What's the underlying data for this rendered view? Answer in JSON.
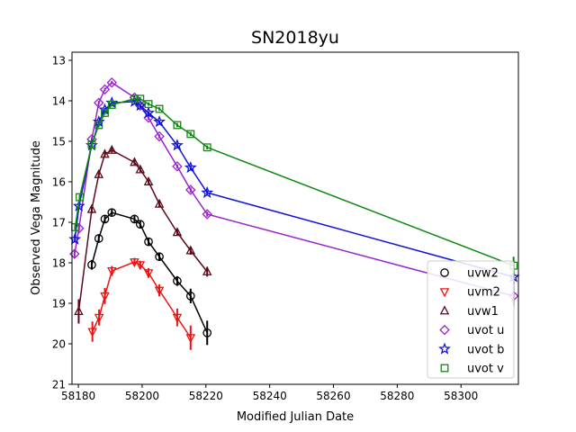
{
  "chart_data": {
    "type": "line",
    "title": "SN2018yu",
    "xlabel": "Modified Julian Date",
    "ylabel": "Observed Vega Magnitude",
    "xlim": [
      58178,
      58318
    ],
    "ylim": [
      21,
      12.8
    ],
    "y_inverted": true,
    "xticks": [
      58180,
      58200,
      58220,
      58240,
      58260,
      58280,
      58300
    ],
    "yticks": [
      13,
      14,
      15,
      16,
      17,
      18,
      19,
      20,
      21
    ],
    "grid": false,
    "legend_position": "lower-right",
    "series": [
      {
        "name": "uvw2",
        "color": "#000000",
        "marker": "circle",
        "points": [
          {
            "x": 58184.2,
            "y": 18.05,
            "err": 0.12
          },
          {
            "x": 58186.4,
            "y": 17.4,
            "err": 0.1
          },
          {
            "x": 58188.3,
            "y": 16.92,
            "err": 0.1
          },
          {
            "x": 58190.5,
            "y": 16.76,
            "err": 0.08
          },
          {
            "x": 58197.6,
            "y": 16.92,
            "err": 0.08
          },
          {
            "x": 58199.4,
            "y": 17.05,
            "err": 0.1
          },
          {
            "x": 58202.0,
            "y": 17.48,
            "err": 0.1
          },
          {
            "x": 58205.4,
            "y": 17.85,
            "err": 0.1
          },
          {
            "x": 58211.0,
            "y": 18.45,
            "err": 0.12
          },
          {
            "x": 58215.2,
            "y": 18.82,
            "err": 0.18
          },
          {
            "x": 58220.4,
            "y": 19.73,
            "err": 0.3
          }
        ]
      },
      {
        "name": "uvm2",
        "color": "#ee1111",
        "marker": "triangle-down",
        "points": [
          {
            "x": 58184.4,
            "y": 19.7,
            "err": 0.25
          },
          {
            "x": 58186.5,
            "y": 19.35,
            "err": 0.2
          },
          {
            "x": 58188.3,
            "y": 18.82,
            "err": 0.2
          },
          {
            "x": 58190.5,
            "y": 18.2,
            "err": 0.12
          },
          {
            "x": 58197.6,
            "y": 17.98,
            "err": 0.1
          },
          {
            "x": 58199.4,
            "y": 18.05,
            "err": 0.1
          },
          {
            "x": 58202.0,
            "y": 18.25,
            "err": 0.12
          },
          {
            "x": 58205.4,
            "y": 18.68,
            "err": 0.15
          },
          {
            "x": 58211.0,
            "y": 19.35,
            "err": 0.22
          },
          {
            "x": 58215.2,
            "y": 19.85,
            "err": 0.3
          }
        ]
      },
      {
        "name": "uvw1",
        "color": "#5c0a1a",
        "marker": "triangle-up",
        "points": [
          {
            "x": 58180.1,
            "y": 19.2,
            "err": 0.3
          },
          {
            "x": 58184.2,
            "y": 16.68,
            "err": 0.1
          },
          {
            "x": 58186.4,
            "y": 15.82,
            "err": 0.08
          },
          {
            "x": 58188.3,
            "y": 15.32,
            "err": 0.06
          },
          {
            "x": 58190.5,
            "y": 15.22,
            "err": 0.06
          },
          {
            "x": 58197.6,
            "y": 15.52,
            "err": 0.06
          },
          {
            "x": 58199.4,
            "y": 15.7,
            "err": 0.06
          },
          {
            "x": 58202.0,
            "y": 16.0,
            "err": 0.06
          },
          {
            "x": 58205.4,
            "y": 16.55,
            "err": 0.08
          },
          {
            "x": 58211.0,
            "y": 17.25,
            "err": 0.08
          },
          {
            "x": 58215.2,
            "y": 17.7,
            "err": 0.1
          },
          {
            "x": 58220.4,
            "y": 18.22,
            "err": 0.12
          }
        ]
      },
      {
        "name": "uvot u",
        "color": "#9922cc",
        "marker": "diamond",
        "points": [
          {
            "x": 58178.8,
            "y": 17.78,
            "err": 0.08
          },
          {
            "x": 58180.2,
            "y": 17.15,
            "err": 0.06
          },
          {
            "x": 58184.2,
            "y": 14.95,
            "err": 0.05
          },
          {
            "x": 58186.4,
            "y": 14.05,
            "err": 0.05
          },
          {
            "x": 58188.3,
            "y": 13.72,
            "err": 0.04
          },
          {
            "x": 58190.5,
            "y": 13.55,
            "err": 0.04
          },
          {
            "x": 58197.6,
            "y": 13.92,
            "err": 0.04
          },
          {
            "x": 58199.4,
            "y": 14.12,
            "err": 0.04
          },
          {
            "x": 58202.0,
            "y": 14.42,
            "err": 0.05
          },
          {
            "x": 58205.4,
            "y": 14.88,
            "err": 0.05
          },
          {
            "x": 58211.0,
            "y": 15.62,
            "err": 0.05
          },
          {
            "x": 58215.2,
            "y": 16.2,
            "err": 0.06
          },
          {
            "x": 58220.4,
            "y": 16.8,
            "err": 0.06
          },
          {
            "x": 58316.5,
            "y": 18.82,
            "err": 0.25
          }
        ]
      },
      {
        "name": "uvot b",
        "color": "#1111dd",
        "marker": "star",
        "points": [
          {
            "x": 58178.9,
            "y": 17.42,
            "err": 0.08
          },
          {
            "x": 58180.2,
            "y": 16.6,
            "err": 0.06
          },
          {
            "x": 58184.2,
            "y": 15.1,
            "err": 0.05
          },
          {
            "x": 58186.4,
            "y": 14.52,
            "err": 0.04
          },
          {
            "x": 58188.3,
            "y": 14.22,
            "err": 0.04
          },
          {
            "x": 58190.5,
            "y": 14.05,
            "err": 0.04
          },
          {
            "x": 58197.6,
            "y": 14.02,
            "err": 0.04
          },
          {
            "x": 58199.4,
            "y": 14.12,
            "err": 0.04
          },
          {
            "x": 58202.0,
            "y": 14.3,
            "err": 0.04
          },
          {
            "x": 58205.4,
            "y": 14.52,
            "err": 0.04
          },
          {
            "x": 58211.0,
            "y": 15.1,
            "err": 0.05
          },
          {
            "x": 58215.2,
            "y": 15.65,
            "err": 0.05
          },
          {
            "x": 58220.4,
            "y": 16.27,
            "err": 0.06
          },
          {
            "x": 58316.5,
            "y": 18.35,
            "err": 0.2
          }
        ]
      },
      {
        "name": "uvot v",
        "color": "#118811",
        "marker": "square",
        "points": [
          {
            "x": 58179.0,
            "y": 17.12,
            "err": 0.08
          },
          {
            "x": 58180.4,
            "y": 16.38,
            "err": 0.06
          },
          {
            "x": 58184.2,
            "y": 15.08,
            "err": 0.05
          },
          {
            "x": 58186.4,
            "y": 14.6,
            "err": 0.05
          },
          {
            "x": 58188.3,
            "y": 14.3,
            "err": 0.04
          },
          {
            "x": 58190.5,
            "y": 14.1,
            "err": 0.04
          },
          {
            "x": 58197.6,
            "y": 13.95,
            "err": 0.04
          },
          {
            "x": 58199.4,
            "y": 13.95,
            "err": 0.04
          },
          {
            "x": 58202.0,
            "y": 14.08,
            "err": 0.04
          },
          {
            "x": 58205.4,
            "y": 14.2,
            "err": 0.04
          },
          {
            "x": 58211.0,
            "y": 14.6,
            "err": 0.05
          },
          {
            "x": 58215.2,
            "y": 14.82,
            "err": 0.05
          },
          {
            "x": 58220.4,
            "y": 15.15,
            "err": 0.05
          },
          {
            "x": 58316.5,
            "y": 18.07,
            "err": 0.22
          }
        ]
      }
    ]
  }
}
